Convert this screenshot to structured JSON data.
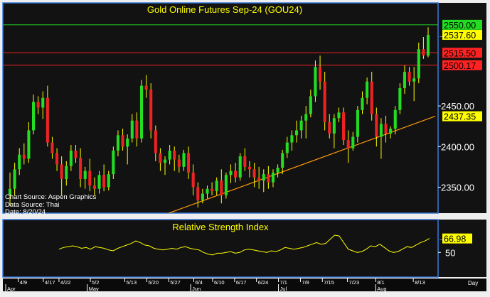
{
  "colors": {
    "background": "#121212",
    "frame": "#3a7be0",
    "axis_text": "#ffffff",
    "title_text": "#ffff00",
    "up_candle": "#22dd22",
    "down_candle": "#ee2222",
    "wick": "#ffff00",
    "level_green": "#22cc22",
    "level_red": "#ee2222",
    "trendline": "#ff9900",
    "rsi_line": "#ffff00",
    "label_green_bg": "#22dd22",
    "label_red_bg": "#ff2222",
    "label_yellow_bg": "#ffff00"
  },
  "header": {
    "title": "Gold Online Futures Sep-24 (GOU24)"
  },
  "source": {
    "line1": "Chart Source: Aspen Graphics",
    "line2": "Data Source: Thai",
    "line3": "Date: 8/20/24"
  },
  "rsi": {
    "title": "Relative Strength Index",
    "label_50": "50",
    "current_label": "66.98"
  },
  "x_axis": {
    "day_label": "Day",
    "day_ticks": [
      "4/9",
      "4/17",
      "4/22",
      "5/2",
      "5/13",
      "5/20",
      "5/27",
      "6/4",
      "6/10",
      "6/17",
      "6/24",
      "7/1",
      "7/8",
      "7/15",
      "7/23",
      "8/1",
      "8/13"
    ],
    "month_ticks": [
      "Apr",
      "May",
      "Jun",
      "Jul",
      "Aug"
    ]
  },
  "price_labels": {
    "l2550": "2550.00",
    "l2537": "2537.60",
    "l2515": "2515.50",
    "l2500": "2500.17",
    "l2437": "2437.35",
    "t2450": "2450.00",
    "t2400": "2400.00",
    "t2350": "2350.00"
  },
  "chart_data": [
    {
      "type": "candlestick",
      "title": "Gold Online Futures Sep-24 (GOU24)",
      "yticks": [
        2350,
        2400,
        2450
      ],
      "ylim": [
        2318,
        2577
      ],
      "date_range": [
        "2024-04-05",
        "2024-08-20"
      ],
      "horizontal_levels": [
        {
          "value": 2550.0,
          "label": "2550.00",
          "color": "green"
        },
        {
          "value": 2515.5,
          "label": "2515.50",
          "color": "red"
        },
        {
          "value": 2500.17,
          "label": "2500.17",
          "color": "red"
        }
      ],
      "last_price": 2537.6,
      "trendline": {
        "from": [
          "2024-05-27",
          2318
        ],
        "to": [
          "2024-08-20",
          2437.35
        ],
        "end_label": "2437.35"
      },
      "ohlc": [
        [
          2340,
          2368,
          2327,
          2348
        ],
        [
          2348,
          2380,
          2340,
          2372
        ],
        [
          2372,
          2398,
          2365,
          2390
        ],
        [
          2390,
          2404,
          2378,
          2385
        ],
        [
          2385,
          2430,
          2380,
          2420
        ],
        [
          2420,
          2464,
          2415,
          2455
        ],
        [
          2455,
          2462,
          2440,
          2448
        ],
        [
          2448,
          2468,
          2434,
          2460
        ],
        [
          2460,
          2475,
          2400,
          2405
        ],
        [
          2405,
          2412,
          2385,
          2392
        ],
        [
          2392,
          2398,
          2370,
          2378
        ],
        [
          2378,
          2388,
          2340,
          2360
        ],
        [
          2360,
          2382,
          2352,
          2376
        ],
        [
          2376,
          2402,
          2370,
          2395
        ],
        [
          2395,
          2402,
          2380,
          2386
        ],
        [
          2386,
          2398,
          2350,
          2360
        ],
        [
          2360,
          2375,
          2348,
          2370
        ],
        [
          2370,
          2385,
          2345,
          2352
        ],
        [
          2352,
          2362,
          2340,
          2348
        ],
        [
          2348,
          2370,
          2342,
          2365
        ],
        [
          2365,
          2378,
          2345,
          2350
        ],
        [
          2350,
          2370,
          2346,
          2366
        ],
        [
          2366,
          2400,
          2360,
          2395
        ],
        [
          2395,
          2420,
          2388,
          2414
        ],
        [
          2414,
          2422,
          2395,
          2400
        ],
        [
          2400,
          2415,
          2378,
          2410
        ],
        [
          2410,
          2440,
          2405,
          2432
        ],
        [
          2432,
          2442,
          2400,
          2410
        ],
        [
          2410,
          2482,
          2405,
          2475
        ],
        [
          2475,
          2488,
          2460,
          2470
        ],
        [
          2470,
          2478,
          2410,
          2420
        ],
        [
          2420,
          2426,
          2382,
          2392
        ],
        [
          2392,
          2398,
          2370,
          2380
        ],
        [
          2380,
          2388,
          2365,
          2384
        ],
        [
          2384,
          2402,
          2378,
          2395
        ],
        [
          2395,
          2400,
          2370,
          2384
        ],
        [
          2384,
          2390,
          2368,
          2375
        ],
        [
          2375,
          2396,
          2370,
          2392
        ],
        [
          2392,
          2400,
          2360,
          2368
        ],
        [
          2368,
          2378,
          2340,
          2350
        ],
        [
          2350,
          2356,
          2325,
          2334
        ],
        [
          2334,
          2348,
          2330,
          2342
        ],
        [
          2342,
          2352,
          2336,
          2348
        ],
        [
          2348,
          2356,
          2340,
          2345
        ],
        [
          2345,
          2362,
          2340,
          2358
        ],
        [
          2358,
          2372,
          2330,
          2340
        ],
        [
          2340,
          2368,
          2336,
          2365
        ],
        [
          2365,
          2378,
          2355,
          2370
        ],
        [
          2370,
          2380,
          2356,
          2362
        ],
        [
          2362,
          2392,
          2358,
          2388
        ],
        [
          2388,
          2398,
          2370,
          2375
        ],
        [
          2375,
          2382,
          2362,
          2372
        ],
        [
          2372,
          2380,
          2350,
          2362
        ],
        [
          2362,
          2375,
          2348,
          2358
        ],
        [
          2358,
          2372,
          2344,
          2366
        ],
        [
          2366,
          2376,
          2348,
          2356
        ],
        [
          2356,
          2372,
          2350,
          2368
        ],
        [
          2368,
          2378,
          2362,
          2374
        ],
        [
          2374,
          2396,
          2366,
          2392
        ],
        [
          2392,
          2412,
          2386,
          2405
        ],
        [
          2405,
          2420,
          2395,
          2414
        ],
        [
          2414,
          2432,
          2405,
          2420
        ],
        [
          2420,
          2438,
          2410,
          2432
        ],
        [
          2432,
          2450,
          2410,
          2440
        ],
        [
          2440,
          2470,
          2436,
          2462
        ],
        [
          2462,
          2506,
          2455,
          2498
        ],
        [
          2498,
          2512,
          2470,
          2480
        ],
        [
          2480,
          2492,
          2420,
          2430
        ],
        [
          2430,
          2440,
          2410,
          2416
        ],
        [
          2416,
          2440,
          2398,
          2435
        ],
        [
          2435,
          2448,
          2430,
          2442
        ],
        [
          2442,
          2448,
          2402,
          2408
        ],
        [
          2408,
          2420,
          2380,
          2398
        ],
        [
          2398,
          2418,
          2395,
          2412
        ],
        [
          2412,
          2450,
          2405,
          2445
        ],
        [
          2445,
          2468,
          2440,
          2460
        ],
        [
          2460,
          2485,
          2452,
          2480
        ],
        [
          2480,
          2492,
          2432,
          2440
        ],
        [
          2440,
          2448,
          2400,
          2412
        ],
        [
          2412,
          2435,
          2385,
          2428
        ],
        [
          2428,
          2438,
          2405,
          2416
        ],
        [
          2416,
          2425,
          2410,
          2422
        ],
        [
          2422,
          2450,
          2415,
          2445
        ],
        [
          2445,
          2478,
          2440,
          2472
        ],
        [
          2472,
          2500,
          2465,
          2492
        ],
        [
          2492,
          2498,
          2475,
          2480
        ],
        [
          2480,
          2498,
          2456,
          2484
        ],
        [
          2484,
          2528,
          2478,
          2520
        ],
        [
          2520,
          2535,
          2508,
          2512
        ],
        [
          2512,
          2547,
          2510,
          2537.6
        ]
      ]
    },
    {
      "type": "line",
      "title": "Relative Strength Index",
      "name": "RSI",
      "x_range": [
        "2024-04-22",
        "2024-08-20"
      ],
      "ylim": [
        20,
        90
      ],
      "yticks": [
        50
      ],
      "values": [
        54,
        56,
        57,
        58,
        57,
        55,
        56,
        54,
        57,
        56,
        55,
        53,
        52,
        55,
        57,
        59,
        61,
        64,
        62,
        59,
        58,
        55,
        54,
        53,
        54,
        55,
        54,
        56,
        57,
        55,
        54,
        53,
        50,
        48,
        47,
        49,
        49,
        50,
        51,
        49,
        50,
        53,
        54,
        53,
        52,
        51,
        50,
        52,
        51,
        53,
        56,
        55,
        54,
        55,
        56,
        58,
        60,
        62,
        60,
        61,
        66,
        71,
        70,
        62,
        54,
        52,
        50,
        51,
        54,
        58,
        57,
        60,
        56,
        52,
        50,
        51,
        54,
        57,
        56,
        59,
        62,
        64,
        66.98
      ]
    }
  ]
}
